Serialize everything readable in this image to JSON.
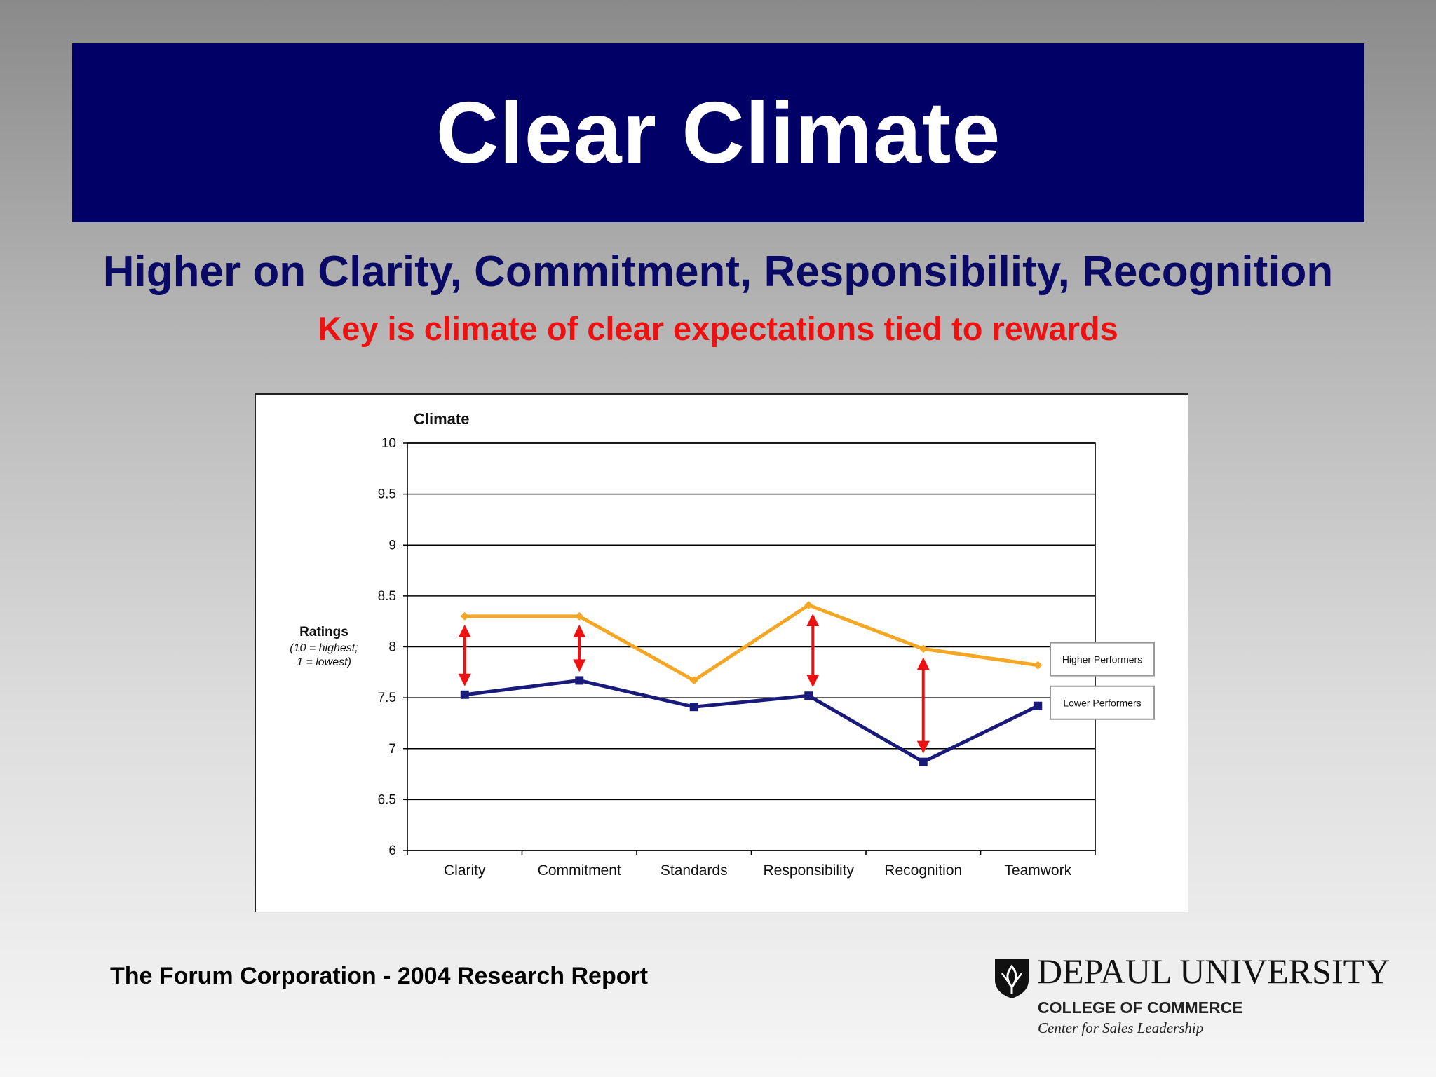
{
  "slide": {
    "title": "Clear Climate",
    "subtitle": "Higher on Clarity, Commitment, Responsibility, Recognition",
    "tagline": "Key is climate of clear expectations tied to rewards",
    "source": "The Forum Corporation - 2004 Research Report"
  },
  "logo": {
    "name": "DEPAUL UNIVERSITY",
    "college": "COLLEGE OF COMMERCE",
    "center": "Center for Sales Leadership"
  },
  "colors": {
    "title_bar": "#000066",
    "subtitle": "#0a0a66",
    "tagline": "#ee1111",
    "higher": "#f5a623",
    "lower": "#1a1a7a",
    "arrow": "#ee1111"
  },
  "chart_data": {
    "type": "line",
    "title": "Climate",
    "ylabel": "Ratings",
    "ylabel_note": [
      "(10 = highest;",
      "1 = lowest)"
    ],
    "xlabel": "",
    "ylim": [
      6,
      10
    ],
    "yticks": [
      "6",
      "6.5",
      "7",
      "7.5",
      "8",
      "8.5",
      "9",
      "9.5",
      "10"
    ],
    "categories": [
      "Clarity",
      "Commitment",
      "Standards",
      "Responsibility",
      "Recognition",
      "Teamwork"
    ],
    "grid": true,
    "legend": "right",
    "series": [
      {
        "name": "Higher Performers",
        "values": [
          8.3,
          8.3,
          7.67,
          8.41,
          7.98,
          7.82
        ],
        "marker": "diamond"
      },
      {
        "name": "Lower Performers",
        "values": [
          7.53,
          7.67,
          7.41,
          7.52,
          6.87,
          7.42
        ],
        "marker": "square"
      }
    ],
    "gap_arrows": [
      "Clarity",
      "Commitment",
      "Responsibility",
      "Recognition"
    ]
  }
}
